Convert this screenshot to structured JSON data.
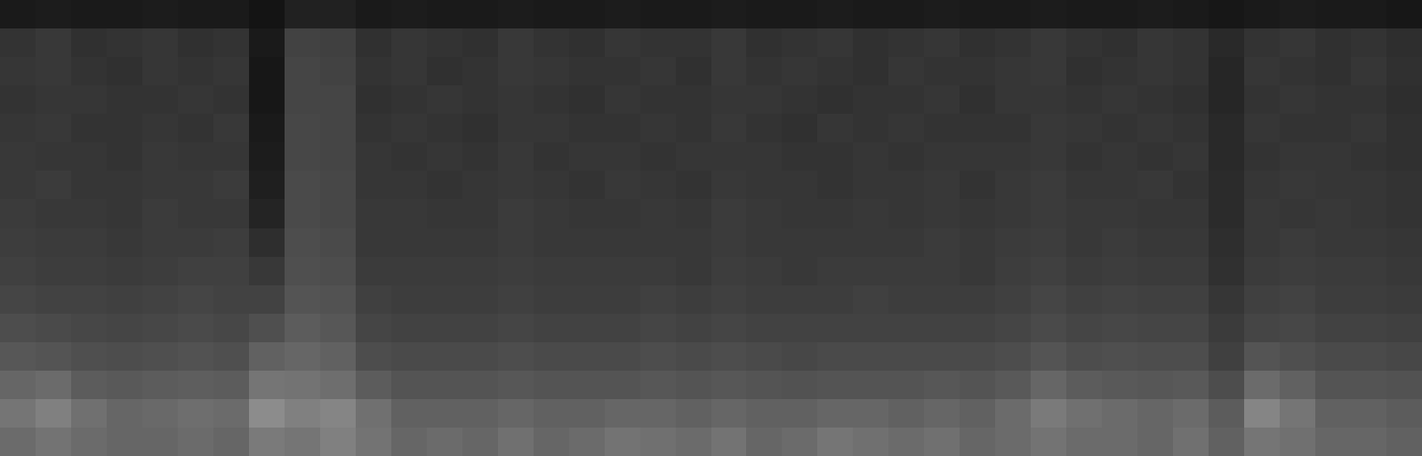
{
  "chart_data": {
    "type": "heatmap",
    "tick_labels": false,
    "zlim": [
      0,
      100
    ],
    "cells": [
      [
        10,
        11,
        10,
        10,
        11,
        10,
        10,
        8,
        13,
        13,
        10,
        11,
        10,
        10,
        11,
        10,
        10,
        11,
        10,
        10,
        11,
        10,
        10,
        11,
        10,
        10,
        11,
        10,
        10,
        11,
        10,
        10,
        11,
        10,
        9,
        10,
        11,
        10,
        10,
        9
      ],
      [
        20,
        22,
        19,
        20,
        21,
        19,
        20,
        10,
        26,
        25,
        19,
        21,
        20,
        19,
        22,
        20,
        19,
        21,
        20,
        20,
        22,
        19,
        20,
        21,
        19,
        20,
        21,
        19,
        20,
        22,
        20,
        19,
        21,
        20,
        16,
        20,
        21,
        19,
        20,
        18
      ],
      [
        21,
        22,
        20,
        19,
        21,
        20,
        21,
        9,
        27,
        26,
        20,
        21,
        19,
        20,
        22,
        21,
        20,
        20,
        21,
        19,
        22,
        20,
        21,
        20,
        19,
        21,
        20,
        20,
        21,
        22,
        19,
        20,
        21,
        20,
        15,
        21,
        20,
        19,
        21,
        19
      ],
      [
        20,
        21,
        21,
        20,
        20,
        21,
        20,
        9,
        27,
        27,
        19,
        20,
        21,
        20,
        21,
        20,
        19,
        21,
        20,
        20,
        21,
        21,
        20,
        19,
        20,
        20,
        21,
        19,
        21,
        21,
        20,
        21,
        20,
        19,
        15,
        20,
        21,
        20,
        20,
        18
      ],
      [
        21,
        22,
        20,
        20,
        21,
        20,
        22,
        10,
        28,
        27,
        20,
        21,
        20,
        19,
        21,
        21,
        20,
        20,
        21,
        20,
        22,
        20,
        19,
        21,
        20,
        21,
        20,
        20,
        20,
        22,
        21,
        20,
        21,
        20,
        16,
        21,
        20,
        20,
        21,
        19
      ],
      [
        22,
        21,
        21,
        20,
        22,
        21,
        21,
        11,
        28,
        27,
        21,
        20,
        21,
        20,
        22,
        20,
        21,
        21,
        20,
        21,
        21,
        21,
        20,
        20,
        21,
        20,
        21,
        21,
        21,
        22,
        20,
        21,
        20,
        21,
        16,
        20,
        21,
        21,
        20,
        19
      ],
      [
        22,
        23,
        21,
        21,
        22,
        22,
        23,
        12,
        29,
        28,
        21,
        21,
        20,
        21,
        22,
        21,
        20,
        22,
        21,
        20,
        22,
        21,
        21,
        20,
        21,
        21,
        22,
        20,
        22,
        23,
        21,
        21,
        22,
        20,
        17,
        21,
        22,
        21,
        21,
        20
      ],
      [
        23,
        22,
        22,
        21,
        23,
        22,
        22,
        14,
        29,
        28,
        22,
        22,
        21,
        21,
        23,
        22,
        21,
        21,
        22,
        21,
        23,
        22,
        21,
        21,
        22,
        21,
        22,
        21,
        22,
        23,
        22,
        22,
        21,
        21,
        17,
        22,
        21,
        22,
        21,
        20
      ],
      [
        24,
        23,
        23,
        22,
        23,
        23,
        24,
        18,
        30,
        29,
        22,
        22,
        22,
        22,
        23,
        22,
        22,
        22,
        22,
        22,
        23,
        22,
        22,
        22,
        22,
        22,
        23,
        22,
        23,
        24,
        22,
        23,
        22,
        22,
        18,
        22,
        23,
        22,
        22,
        21
      ],
      [
        25,
        24,
        24,
        23,
        24,
        25,
        25,
        22,
        31,
        30,
        23,
        23,
        23,
        23,
        24,
        23,
        23,
        23,
        23,
        22,
        24,
        23,
        22,
        23,
        23,
        23,
        23,
        22,
        24,
        25,
        23,
        24,
        23,
        23,
        19,
        23,
        24,
        23,
        23,
        22
      ],
      [
        27,
        26,
        26,
        25,
        26,
        27,
        26,
        26,
        33,
        32,
        25,
        24,
        24,
        24,
        25,
        24,
        24,
        24,
        25,
        24,
        25,
        24,
        24,
        24,
        25,
        24,
        24,
        24,
        25,
        27,
        25,
        26,
        25,
        25,
        21,
        25,
        26,
        24,
        24,
        23
      ],
      [
        30,
        29,
        28,
        27,
        28,
        29,
        28,
        31,
        36,
        34,
        27,
        26,
        26,
        26,
        27,
        26,
        26,
        26,
        27,
        26,
        27,
        26,
        26,
        26,
        26,
        26,
        26,
        26,
        27,
        29,
        27,
        28,
        27,
        27,
        23,
        27,
        28,
        26,
        26,
        25
      ],
      [
        34,
        33,
        31,
        30,
        31,
        32,
        31,
        38,
        40,
        38,
        30,
        29,
        29,
        29,
        30,
        29,
        29,
        29,
        30,
        29,
        30,
        29,
        28,
        29,
        29,
        29,
        29,
        29,
        30,
        33,
        30,
        31,
        30,
        30,
        25,
        33,
        31,
        29,
        29,
        28
      ],
      [
        40,
        42,
        36,
        35,
        36,
        37,
        36,
        46,
        45,
        43,
        36,
        33,
        33,
        33,
        34,
        33,
        33,
        33,
        34,
        33,
        34,
        33,
        32,
        33,
        33,
        33,
        34,
        33,
        35,
        40,
        36,
        35,
        34,
        35,
        30,
        42,
        38,
        33,
        33,
        32
      ],
      [
        46,
        50,
        44,
        40,
        41,
        43,
        42,
        55,
        50,
        52,
        44,
        38,
        38,
        38,
        40,
        38,
        38,
        40,
        40,
        38,
        40,
        38,
        38,
        40,
        40,
        38,
        40,
        38,
        42,
        48,
        44,
        42,
        40,
        42,
        36,
        52,
        46,
        38,
        38,
        36
      ],
      [
        42,
        45,
        42,
        40,
        40,
        42,
        40,
        48,
        46,
        50,
        45,
        40,
        42,
        40,
        44,
        40,
        42,
        45,
        44,
        42,
        45,
        40,
        42,
        46,
        44,
        42,
        44,
        40,
        42,
        45,
        42,
        42,
        40,
        44,
        38,
        46,
        44,
        40,
        40,
        38
      ]
    ]
  }
}
